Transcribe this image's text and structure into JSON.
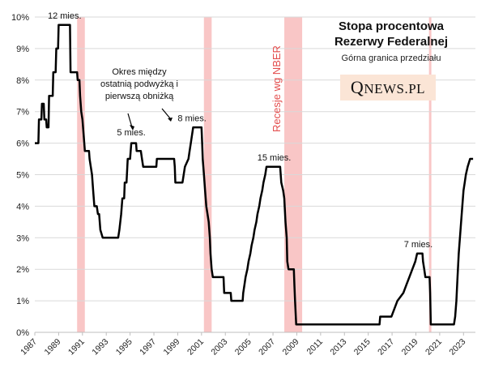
{
  "chart_data": {
    "type": "line",
    "title": "Stopa procentowa",
    "title_line2": "Rezerwy Federalnej",
    "subtitle": "Górna granica przedziału",
    "ylim": [
      0,
      10
    ],
    "xlim": [
      1987,
      2024
    ],
    "y_ticks": [
      "0%",
      "1%",
      "2%",
      "3%",
      "4%",
      "5%",
      "6%",
      "7%",
      "8%",
      "9%",
      "10%"
    ],
    "x_ticks": [
      "1987",
      "1989",
      "1991",
      "1993",
      "1995",
      "1997",
      "1999",
      "2001",
      "2003",
      "2005",
      "2007",
      "2009",
      "2011",
      "2013",
      "2015",
      "2017",
      "2019",
      "2021",
      "2023"
    ],
    "series": [
      {
        "name": "Górna granica przedziału",
        "color": "#000000",
        "points": [
          [
            1987.0,
            6.0
          ],
          [
            1987.3,
            6.0
          ],
          [
            1987.35,
            6.75
          ],
          [
            1987.55,
            6.75
          ],
          [
            1987.6,
            7.25
          ],
          [
            1987.75,
            7.25
          ],
          [
            1987.8,
            6.75
          ],
          [
            1987.95,
            6.75
          ],
          [
            1988.0,
            6.5
          ],
          [
            1988.15,
            6.5
          ],
          [
            1988.2,
            7.5
          ],
          [
            1988.5,
            7.5
          ],
          [
            1988.55,
            8.25
          ],
          [
            1988.75,
            8.25
          ],
          [
            1988.8,
            9.0
          ],
          [
            1988.95,
            9.0
          ],
          [
            1989.0,
            9.75
          ],
          [
            1989.95,
            9.75
          ],
          [
            1990.0,
            8.25
          ],
          [
            1990.55,
            8.25
          ],
          [
            1990.6,
            8.0
          ],
          [
            1990.75,
            8.0
          ],
          [
            1990.8,
            7.5
          ],
          [
            1990.9,
            7.0
          ],
          [
            1991.0,
            6.75
          ],
          [
            1991.1,
            6.25
          ],
          [
            1991.2,
            5.75
          ],
          [
            1991.55,
            5.75
          ],
          [
            1991.6,
            5.5
          ],
          [
            1991.7,
            5.25
          ],
          [
            1991.8,
            5.0
          ],
          [
            1991.9,
            4.5
          ],
          [
            1992.0,
            4.0
          ],
          [
            1992.2,
            4.0
          ],
          [
            1992.3,
            3.75
          ],
          [
            1992.4,
            3.75
          ],
          [
            1992.5,
            3.25
          ],
          [
            1992.7,
            3.0
          ],
          [
            1994.0,
            3.0
          ],
          [
            1994.1,
            3.25
          ],
          [
            1994.25,
            3.75
          ],
          [
            1994.35,
            4.25
          ],
          [
            1994.5,
            4.25
          ],
          [
            1994.55,
            4.75
          ],
          [
            1994.7,
            4.75
          ],
          [
            1994.8,
            5.5
          ],
          [
            1995.0,
            5.5
          ],
          [
            1995.1,
            6.0
          ],
          [
            1995.5,
            6.0
          ],
          [
            1995.55,
            5.75
          ],
          [
            1995.9,
            5.75
          ],
          [
            1996.0,
            5.5
          ],
          [
            1996.1,
            5.25
          ],
          [
            1997.2,
            5.25
          ],
          [
            1997.25,
            5.5
          ],
          [
            1998.7,
            5.5
          ],
          [
            1998.75,
            5.25
          ],
          [
            1998.8,
            4.75
          ],
          [
            1999.4,
            4.75
          ],
          [
            1999.5,
            5.0
          ],
          [
            1999.6,
            5.25
          ],
          [
            1999.9,
            5.5
          ],
          [
            2000.0,
            5.75
          ],
          [
            2000.1,
            6.0
          ],
          [
            2000.3,
            6.5
          ],
          [
            2001.0,
            6.5
          ],
          [
            2001.05,
            6.0
          ],
          [
            2001.1,
            5.5
          ],
          [
            2001.2,
            5.0
          ],
          [
            2001.3,
            4.5
          ],
          [
            2001.4,
            4.0
          ],
          [
            2001.5,
            3.75
          ],
          [
            2001.6,
            3.5
          ],
          [
            2001.7,
            3.0
          ],
          [
            2001.75,
            2.5
          ],
          [
            2001.85,
            2.0
          ],
          [
            2001.95,
            1.75
          ],
          [
            2002.85,
            1.75
          ],
          [
            2002.9,
            1.25
          ],
          [
            2003.45,
            1.25
          ],
          [
            2003.5,
            1.0
          ],
          [
            2004.45,
            1.0
          ],
          [
            2004.5,
            1.25
          ],
          [
            2004.6,
            1.5
          ],
          [
            2004.7,
            1.75
          ],
          [
            2004.85,
            2.0
          ],
          [
            2004.95,
            2.25
          ],
          [
            2005.1,
            2.5
          ],
          [
            2005.2,
            2.75
          ],
          [
            2005.35,
            3.0
          ],
          [
            2005.45,
            3.25
          ],
          [
            2005.6,
            3.5
          ],
          [
            2005.7,
            3.75
          ],
          [
            2005.85,
            4.0
          ],
          [
            2005.95,
            4.25
          ],
          [
            2006.1,
            4.5
          ],
          [
            2006.2,
            4.75
          ],
          [
            2006.35,
            5.0
          ],
          [
            2006.45,
            5.25
          ],
          [
            2007.6,
            5.25
          ],
          [
            2007.7,
            4.75
          ],
          [
            2007.85,
            4.5
          ],
          [
            2007.95,
            4.25
          ],
          [
            2008.05,
            3.5
          ],
          [
            2008.15,
            3.0
          ],
          [
            2008.2,
            2.25
          ],
          [
            2008.3,
            2.0
          ],
          [
            2008.75,
            2.0
          ],
          [
            2008.8,
            1.5
          ],
          [
            2008.85,
            1.0
          ],
          [
            2008.95,
            0.25
          ],
          [
            2015.95,
            0.25
          ],
          [
            2016.0,
            0.5
          ],
          [
            2016.95,
            0.5
          ],
          [
            2017.2,
            0.75
          ],
          [
            2017.45,
            1.0
          ],
          [
            2017.95,
            1.25
          ],
          [
            2018.2,
            1.5
          ],
          [
            2018.45,
            1.75
          ],
          [
            2018.7,
            2.0
          ],
          [
            2018.95,
            2.25
          ],
          [
            2019.1,
            2.5
          ],
          [
            2019.55,
            2.5
          ],
          [
            2019.6,
            2.25
          ],
          [
            2019.7,
            2.0
          ],
          [
            2019.8,
            1.75
          ],
          [
            2020.15,
            1.75
          ],
          [
            2020.2,
            1.25
          ],
          [
            2020.25,
            0.25
          ],
          [
            2022.2,
            0.25
          ],
          [
            2022.3,
            0.5
          ],
          [
            2022.4,
            1.0
          ],
          [
            2022.5,
            1.75
          ],
          [
            2022.6,
            2.5
          ],
          [
            2022.75,
            3.25
          ],
          [
            2022.9,
            4.0
          ],
          [
            2023.0,
            4.5
          ],
          [
            2023.1,
            4.75
          ],
          [
            2023.2,
            5.0
          ],
          [
            2023.35,
            5.25
          ],
          [
            2023.55,
            5.5
          ],
          [
            2023.8,
            5.5
          ]
        ]
      }
    ],
    "recessions": [
      {
        "label": "1990-1991",
        "start": 1990.55,
        "end": 1991.2
      },
      {
        "label": "2001",
        "start": 2001.2,
        "end": 2001.85
      },
      {
        "label": "2008-2009",
        "start": 2007.95,
        "end": 2009.45
      },
      {
        "label": "2020",
        "start": 2020.1,
        "end": 2020.3
      }
    ],
    "recession_label": "Recesje wg NBER",
    "annotations": [
      {
        "id": "ann-12",
        "text": "12 mies.",
        "x": 1989.5,
        "y": 9.95
      },
      {
        "id": "ann-5",
        "text": "5 mies.",
        "x": 1995.1,
        "y": 6.25
      },
      {
        "id": "ann-8",
        "text": "8 mies.",
        "x": 2000.2,
        "y": 6.7
      },
      {
        "id": "ann-15",
        "text": "15 mies.",
        "x": 2007.1,
        "y": 5.45
      },
      {
        "id": "ann-7",
        "text": "7 mies.",
        "x": 2019.2,
        "y": 2.7
      }
    ],
    "note": [
      "Okres między",
      "ostatnią podwyżką i",
      "pierwszą obniżką"
    ]
  },
  "brand": {
    "initial": "Q",
    "rest": "NEWS.PL"
  },
  "colors": {
    "line": "#000000",
    "recession": "#f9c6c6",
    "recession_label": "#e34c4c",
    "grid": "#d9d9d9",
    "axis": "#bfbfbf",
    "logo_bg": "#fbe5d6"
  }
}
